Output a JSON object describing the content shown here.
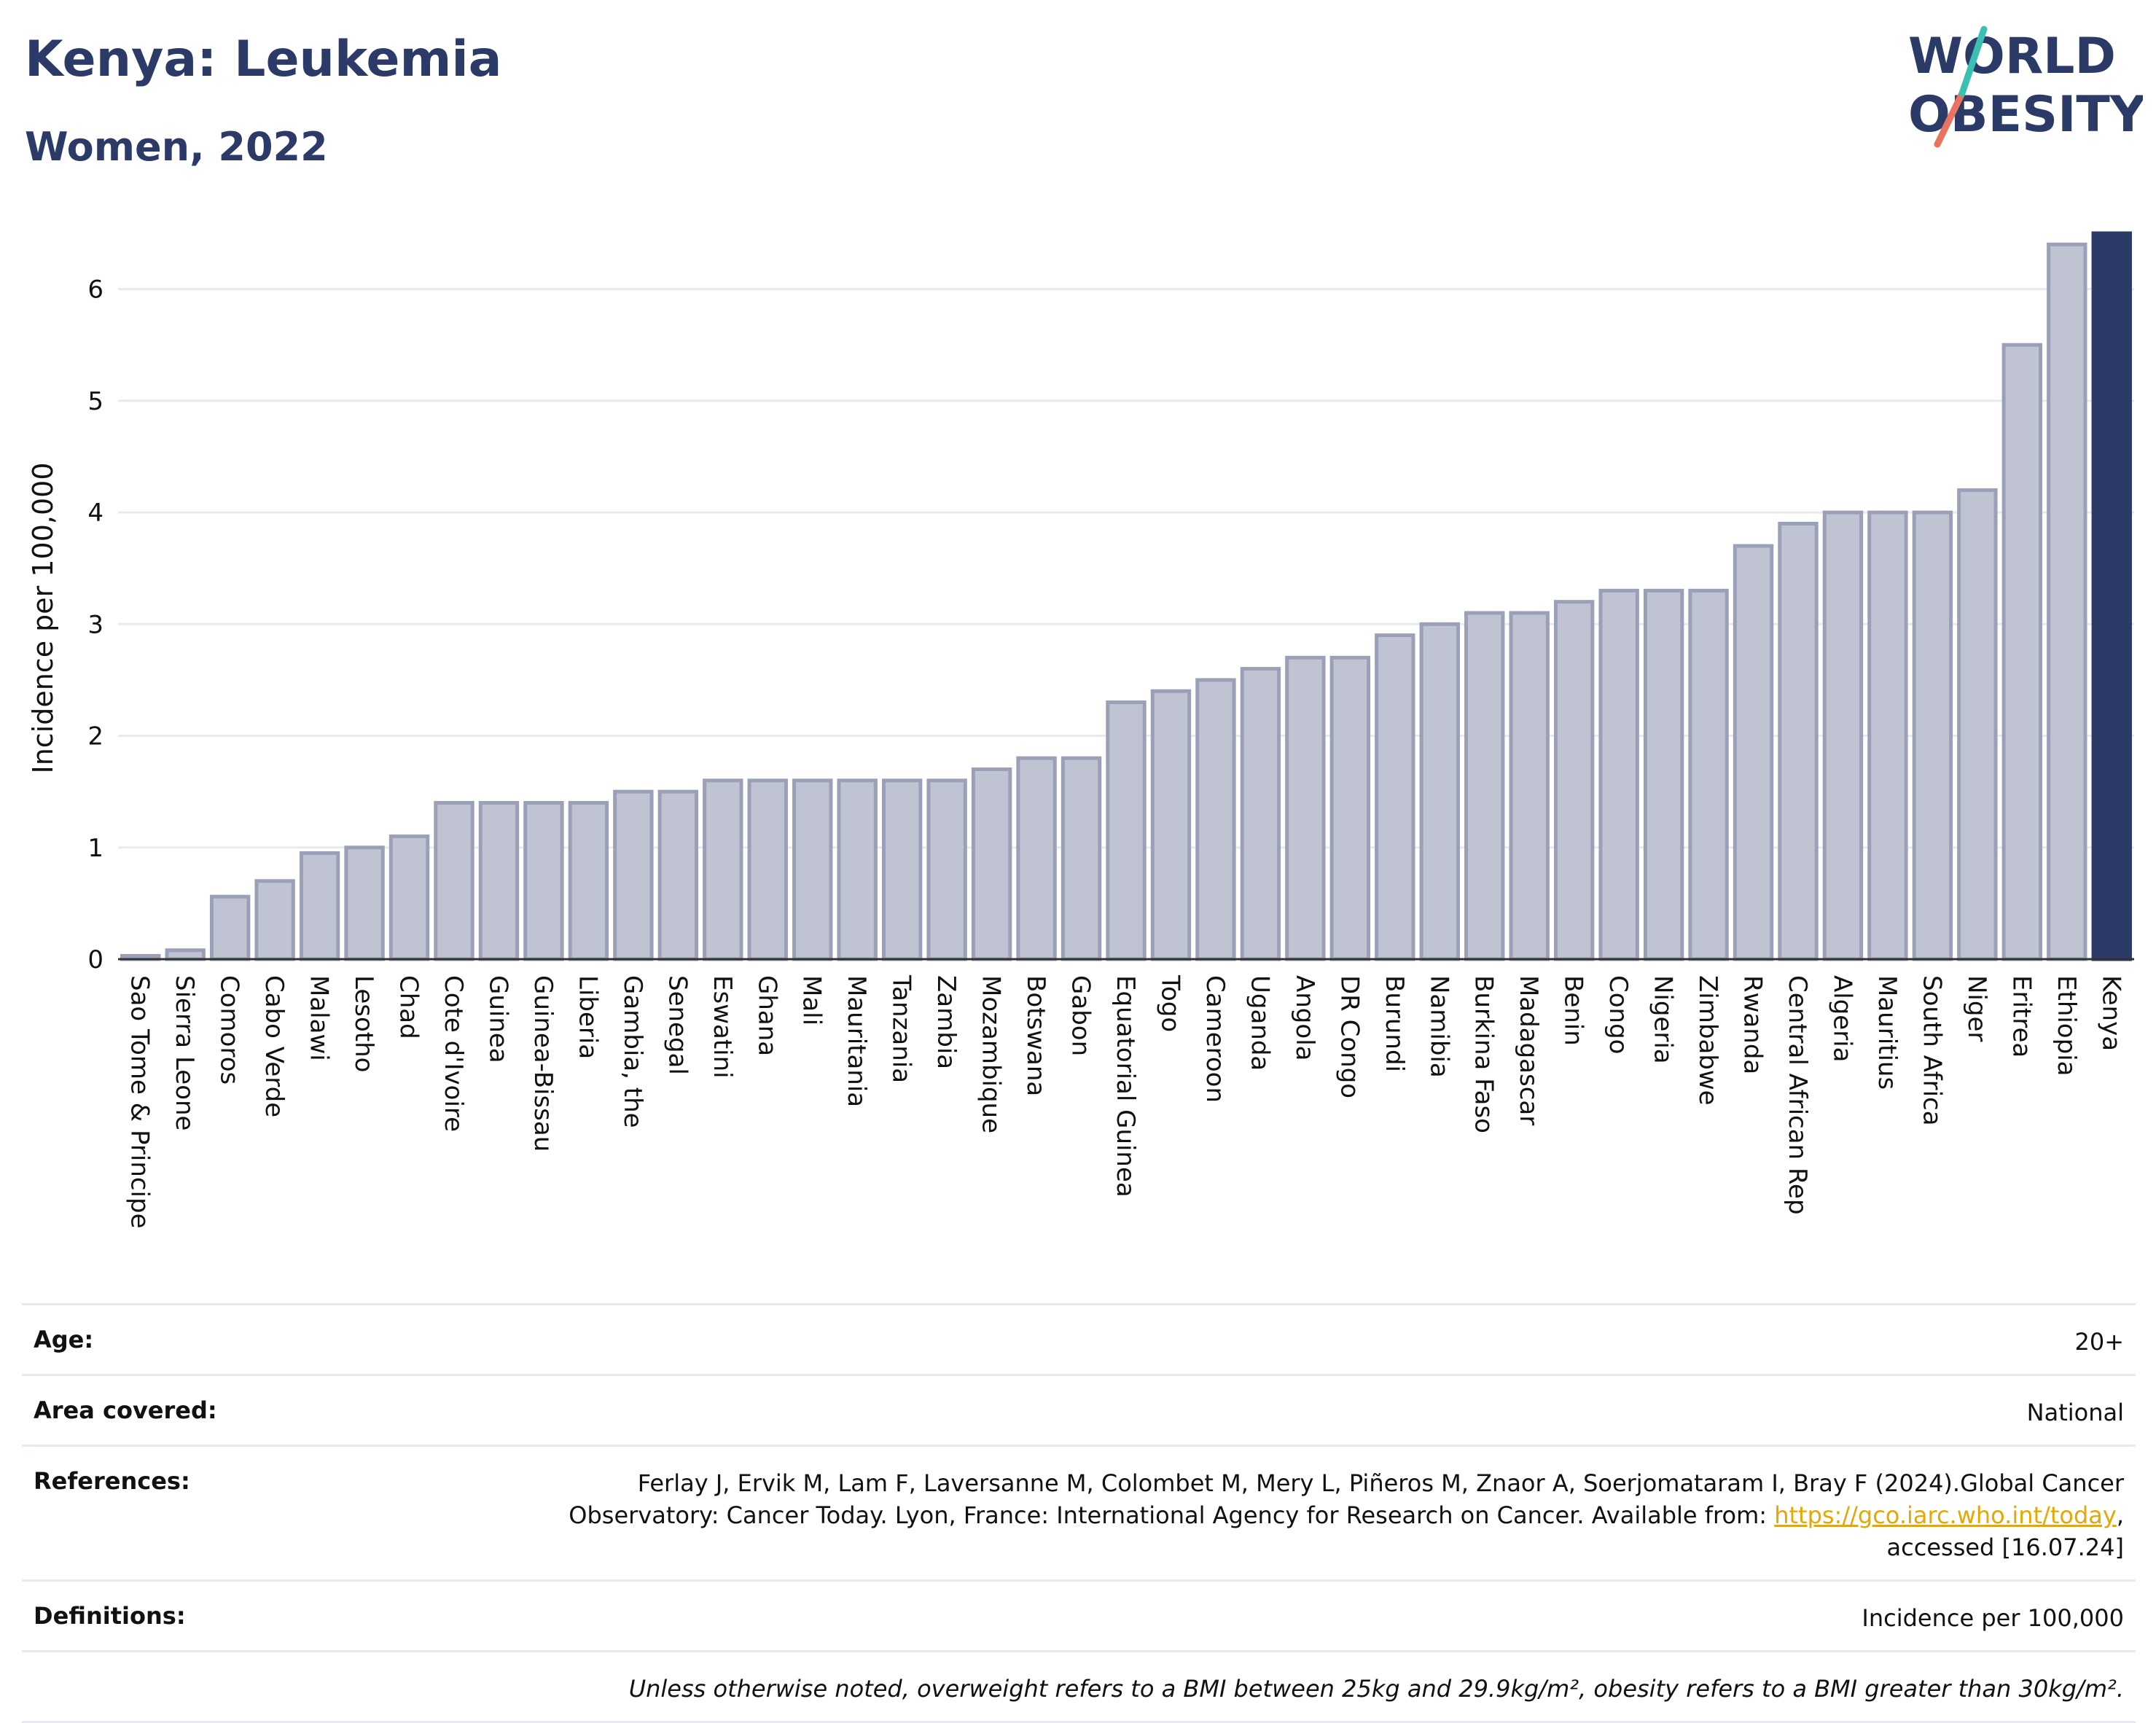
{
  "header": {
    "title": "Kenya: Leukemia",
    "subtitle": "Women, 2022"
  },
  "logo": {
    "line1": "WORLD",
    "line2": "OBESITY"
  },
  "chart_data": {
    "type": "bar",
    "ylabel": "Incidence per 100,000",
    "xlabel": "",
    "ylim": [
      0,
      6.5
    ],
    "yticks": [
      0,
      1,
      2,
      3,
      4,
      5,
      6
    ],
    "grid": true,
    "highlight": "Kenya",
    "colors": {
      "default": "#c0c4d2",
      "default_edge": "#9aa0b8",
      "highlight": "#2b3a67",
      "grid": "#e8eaf0"
    },
    "categories": [
      "Sao Tome & Principe",
      "Sierra Leone",
      "Comoros",
      "Cabo Verde",
      "Malawi",
      "Lesotho",
      "Chad",
      "Cote d'Ivoire",
      "Guinea",
      "Guinea-Bissau",
      "Liberia",
      "Gambia, the",
      "Senegal",
      "Eswatini",
      "Ghana",
      "Mali",
      "Mauritania",
      "Tanzania",
      "Zambia",
      "Mozambique",
      "Botswana",
      "Gabon",
      "Equatorial Guinea",
      "Togo",
      "Cameroon",
      "Uganda",
      "Angola",
      "DR Congo",
      "Burundi",
      "Namibia",
      "Burkina Faso",
      "Madagascar",
      "Benin",
      "Congo",
      "Nigeria",
      "Zimbabwe",
      "Rwanda",
      "Central African Rep",
      "Algeria",
      "Mauritius",
      "South Africa",
      "Niger",
      "Eritrea",
      "Ethiopia",
      "Kenya"
    ],
    "values": [
      0.03,
      0.08,
      0.56,
      0.7,
      0.95,
      1.0,
      1.1,
      1.4,
      1.4,
      1.4,
      1.4,
      1.5,
      1.5,
      1.6,
      1.6,
      1.6,
      1.6,
      1.6,
      1.6,
      1.7,
      1.8,
      1.8,
      2.3,
      2.4,
      2.5,
      2.6,
      2.7,
      2.7,
      2.9,
      3.0,
      3.1,
      3.1,
      3.2,
      3.3,
      3.3,
      3.3,
      3.7,
      3.9,
      4.0,
      4.0,
      4.0,
      4.2,
      5.5,
      6.4,
      6.5
    ]
  },
  "info": {
    "age_label": "Age:",
    "age_value": "20+",
    "area_label": "Area covered:",
    "area_value": "National",
    "references_label": "References:",
    "references_line1": "Ferlay J, Ervik M, Lam F, Laversanne M, Colombet M, Mery L, Piñeros M, Znaor A, Soerjomataram I, Bray F (2024).Global Cancer",
    "references_line2_pre": "Observatory: Cancer Today. Lyon, France: International Agency for Research on Cancer. Available from: ",
    "references_link": "https://gco.iarc.who.int/today",
    "references_line2_post": ",",
    "references_line3": "accessed [16.07.24]",
    "definitions_label": "Definitions:",
    "definitions_value": "Incidence per 100,000",
    "note": "Unless otherwise noted, overweight refers to a BMI between 25kg and 29.9kg/m², obesity refers to a BMI greater than 30kg/m²."
  }
}
